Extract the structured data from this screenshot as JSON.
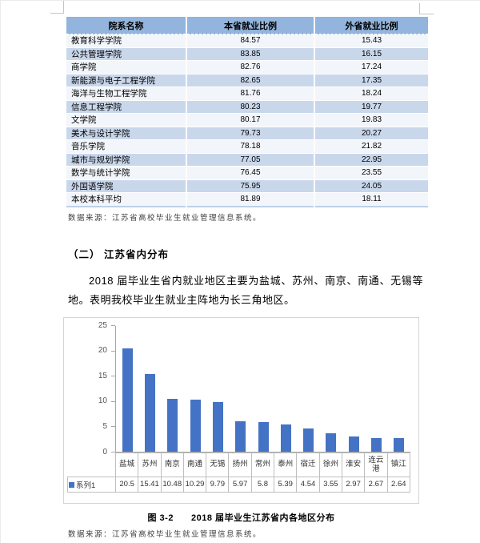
{
  "table": {
    "headers": [
      "院系名称",
      "本省就业比例",
      "外省就业比例"
    ],
    "rows": [
      [
        "教育科学学院",
        "84.57",
        "15.43"
      ],
      [
        "公共管理学院",
        "83.85",
        "16.15"
      ],
      [
        "商学院",
        "82.76",
        "17.24"
      ],
      [
        "新能源与电子工程学院",
        "82.65",
        "17.35"
      ],
      [
        "海洋与生物工程学院",
        "81.76",
        "18.24"
      ],
      [
        "信息工程学院",
        "80.23",
        "19.77"
      ],
      [
        "文学院",
        "80.17",
        "19.83"
      ],
      [
        "美术与设计学院",
        "79.73",
        "20.27"
      ],
      [
        "音乐学院",
        "78.18",
        "21.82"
      ],
      [
        "城市与规划学院",
        "77.05",
        "22.95"
      ],
      [
        "数学与统计学院",
        "76.45",
        "23.55"
      ],
      [
        "外国语学院",
        "75.95",
        "24.05"
      ],
      [
        "本校本科平均",
        "81.89",
        "18.11"
      ]
    ],
    "source_note": "数据来源：江苏省高校毕业生就业管理信息系统。"
  },
  "section": {
    "heading": "（二） 江苏省内分布",
    "paragraph": "2018 届毕业生省内就业地区主要为盐城、苏州、南京、南通、无锡等地。表明我校毕业生就业主阵地为长三角地区。"
  },
  "chart_data": {
    "type": "bar",
    "categories": [
      "盐城",
      "苏州",
      "南京",
      "南通",
      "无锡",
      "扬州",
      "常州",
      "泰州",
      "宿迁",
      "徐州",
      "淮安",
      "连云港",
      "镇江"
    ],
    "series": [
      {
        "name": "系列1",
        "values": [
          20.5,
          15.41,
          10.48,
          10.29,
          9.79,
          5.97,
          5.8,
          5.39,
          4.54,
          3.55,
          2.97,
          2.67,
          2.64
        ]
      }
    ],
    "ylim": [
      0,
      25
    ],
    "yticks": [
      0,
      5,
      10,
      15,
      20,
      25
    ],
    "bar_color": "#4472C4",
    "grid": false,
    "legend_position": "table-left",
    "caption_label": "图 3-2",
    "caption_text": "2018 届毕业生江苏省内各地区分布",
    "source_note": "数据来源：江苏省高校毕业生就业管理信息系统。"
  },
  "colors": {
    "table_header_bg": "#93B4DC",
    "table_band_bg": "#C9D7EB",
    "table_light_bg": "#F2F6FB",
    "bar": "#4472C4"
  }
}
